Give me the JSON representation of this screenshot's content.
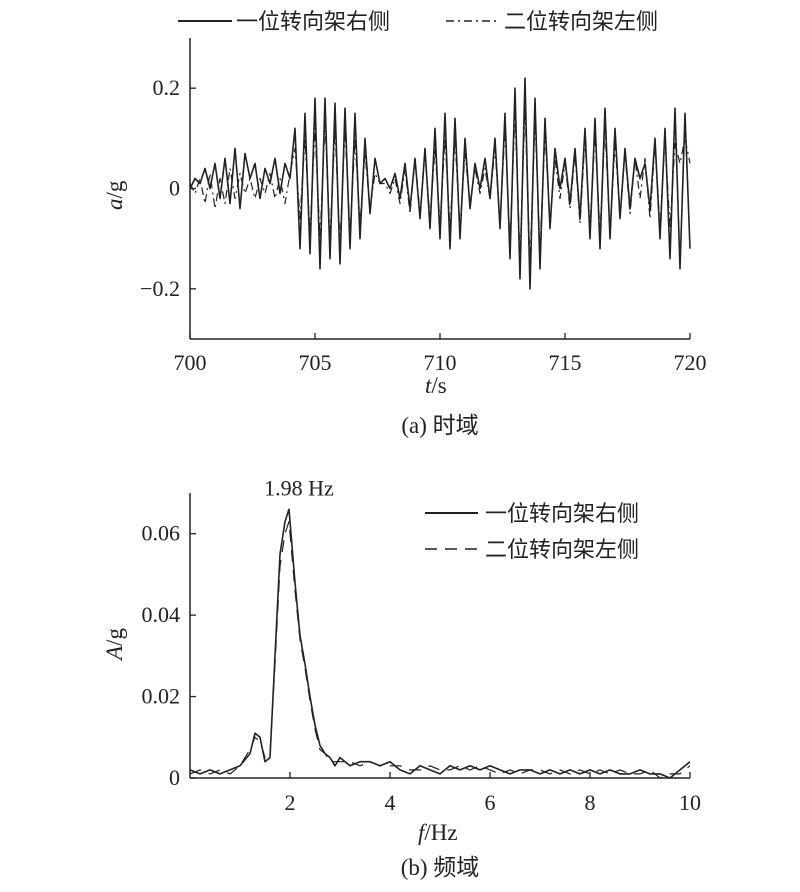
{
  "chart_data": [
    {
      "type": "line",
      "caption": "(a) 时域",
      "xlabel_italic": "t",
      "xlabel_unit": "/s",
      "ylabel_italic": "a",
      "ylabel_unit": "/g",
      "xlim": [
        700,
        720
      ],
      "ylim": [
        -0.3,
        0.3
      ],
      "xticks": [
        700,
        705,
        710,
        715,
        720
      ],
      "xtick_labels": [
        "700",
        "705",
        "710",
        "715",
        "720"
      ],
      "yticks": [
        0.2,
        0,
        -0.2
      ],
      "ytick_labels": [
        "0.2",
        "0",
        "−0.2"
      ],
      "legend_position": "top",
      "series": [
        {
          "name": "一位转向架右侧",
          "style": "solid",
          "x": [
            700.0,
            700.2,
            700.4,
            700.6,
            700.8,
            701.0,
            701.2,
            701.4,
            701.6,
            701.8,
            702.0,
            702.2,
            702.4,
            702.6,
            702.8,
            703.0,
            703.2,
            703.4,
            703.6,
            703.8,
            704.0,
            704.2,
            704.4,
            704.6,
            704.8,
            705.0,
            705.2,
            705.4,
            705.6,
            705.8,
            706.0,
            706.2,
            706.4,
            706.6,
            706.8,
            707.0,
            707.2,
            707.4,
            707.6,
            707.8,
            708.0,
            708.2,
            708.4,
            708.6,
            708.8,
            709.0,
            709.2,
            709.4,
            709.6,
            709.8,
            710.0,
            710.2,
            710.4,
            710.6,
            710.8,
            711.0,
            711.2,
            711.4,
            711.6,
            711.8,
            712.0,
            712.2,
            712.4,
            712.6,
            712.8,
            713.0,
            713.2,
            713.4,
            713.6,
            713.8,
            714.0,
            714.2,
            714.4,
            714.6,
            714.8,
            715.0,
            715.2,
            715.4,
            715.6,
            715.8,
            716.0,
            716.2,
            716.4,
            716.6,
            716.8,
            717.0,
            717.2,
            717.4,
            717.6,
            717.8,
            718.0,
            718.2,
            718.4,
            718.6,
            718.8,
            719.0,
            719.2,
            719.4,
            719.6,
            719.8,
            720.0
          ],
          "y": [
            0.0,
            0.02,
            0.01,
            0.04,
            0.0,
            0.05,
            -0.02,
            0.06,
            -0.03,
            0.08,
            -0.04,
            0.07,
            0.02,
            0.05,
            -0.02,
            0.04,
            0.01,
            0.06,
            -0.01,
            0.05,
            0.02,
            0.12,
            -0.12,
            0.15,
            -0.13,
            0.18,
            -0.16,
            0.18,
            -0.14,
            0.17,
            -0.15,
            0.16,
            -0.12,
            0.15,
            -0.1,
            0.1,
            -0.05,
            0.06,
            0.01,
            0.02,
            0.0,
            0.03,
            -0.02,
            0.05,
            -0.04,
            0.06,
            -0.06,
            0.08,
            -0.08,
            0.12,
            -0.1,
            0.15,
            -0.12,
            0.14,
            -0.1,
            0.1,
            -0.04,
            0.05,
            0.0,
            0.06,
            -0.02,
            0.1,
            -0.08,
            0.15,
            -0.14,
            0.2,
            -0.18,
            0.22,
            -0.2,
            0.18,
            -0.16,
            0.14,
            -0.08,
            0.08,
            0.0,
            0.06,
            -0.03,
            0.08,
            -0.06,
            0.12,
            -0.1,
            0.14,
            -0.12,
            0.16,
            -0.1,
            0.12,
            -0.06,
            0.08,
            -0.04,
            0.06,
            0.02,
            0.05,
            -0.04,
            0.1,
            -0.1,
            0.12,
            -0.14,
            0.16,
            -0.16,
            0.15,
            -0.12
          ]
        },
        {
          "name": "二位转向架左侧",
          "style": "dash-dot",
          "x": [
            700.0,
            700.2,
            700.4,
            700.6,
            700.8,
            701.0,
            701.2,
            701.4,
            701.6,
            701.8,
            702.0,
            702.2,
            702.4,
            702.6,
            702.8,
            703.0,
            703.2,
            703.4,
            703.6,
            703.8,
            704.0,
            704.2,
            704.4,
            704.6,
            704.8,
            705.0,
            705.2,
            705.4,
            705.6,
            705.8,
            706.0,
            706.2,
            706.4,
            706.6,
            706.8,
            707.0,
            707.2,
            707.4,
            707.6,
            707.8,
            708.0,
            708.2,
            708.4,
            708.6,
            708.8,
            709.0,
            709.2,
            709.4,
            709.6,
            709.8,
            710.0,
            710.2,
            710.4,
            710.6,
            710.8,
            711.0,
            711.2,
            711.4,
            711.6,
            711.8,
            712.0,
            712.2,
            712.4,
            712.6,
            712.8,
            713.0,
            713.2,
            713.4,
            713.6,
            713.8,
            714.0,
            714.2,
            714.4,
            714.6,
            714.8,
            715.0,
            715.2,
            715.4,
            715.6,
            715.8,
            716.0,
            716.2,
            716.4,
            716.6,
            716.8,
            717.0,
            717.2,
            717.4,
            717.6,
            717.8,
            718.0,
            718.2,
            718.4,
            718.6,
            718.8,
            719.0,
            719.2,
            719.4,
            719.6,
            719.8,
            720.0
          ],
          "y": [
            0.01,
            -0.01,
            0.02,
            -0.03,
            0.03,
            -0.04,
            0.02,
            -0.03,
            0.04,
            -0.02,
            0.03,
            -0.01,
            0.02,
            -0.02,
            0.02,
            -0.01,
            0.03,
            -0.02,
            0.02,
            -0.03,
            0.03,
            0.08,
            -0.06,
            0.1,
            -0.09,
            0.12,
            -0.1,
            0.13,
            -0.1,
            0.12,
            -0.11,
            0.12,
            -0.09,
            0.1,
            -0.07,
            0.07,
            -0.04,
            0.03,
            0.01,
            0.01,
            -0.01,
            0.02,
            -0.03,
            0.04,
            -0.05,
            0.06,
            -0.05,
            0.07,
            -0.06,
            0.08,
            -0.07,
            0.1,
            -0.08,
            0.1,
            -0.08,
            0.07,
            -0.03,
            0.04,
            -0.01,
            0.04,
            -0.02,
            0.08,
            -0.07,
            0.12,
            -0.11,
            0.15,
            -0.14,
            0.16,
            -0.15,
            0.14,
            -0.12,
            0.11,
            -0.07,
            0.06,
            -0.02,
            0.05,
            -0.04,
            0.07,
            -0.07,
            0.1,
            -0.08,
            0.11,
            -0.09,
            0.12,
            -0.09,
            0.09,
            -0.05,
            0.07,
            -0.05,
            0.06,
            -0.02,
            0.06,
            -0.06,
            0.09,
            -0.08,
            0.1,
            -0.08,
            0.09,
            0.05,
            0.1,
            0.05
          ]
        }
      ]
    },
    {
      "type": "line",
      "caption": "(b) 频域",
      "xlabel_italic": "f",
      "xlabel_unit": "/Hz",
      "ylabel_italic": "A",
      "ylabel_unit": "/g",
      "xlim": [
        0,
        10
      ],
      "ylim": [
        0,
        0.07
      ],
      "xticks": [
        2,
        4,
        6,
        8,
        10
      ],
      "xtick_labels": [
        "2",
        "4",
        "6",
        "8",
        "10"
      ],
      "yticks": [
        0,
        0.02,
        0.04,
        0.06
      ],
      "ytick_labels": [
        "0",
        "0.02",
        "0.04",
        "0.06"
      ],
      "annotation": "1.98 Hz",
      "annotation_x": 1.98,
      "annotation_y": 0.0665,
      "legend_position": "top-right",
      "series": [
        {
          "name": "一位转向架右侧",
          "style": "solid",
          "x": [
            0.0,
            0.2,
            0.4,
            0.6,
            0.8,
            1.0,
            1.2,
            1.3,
            1.4,
            1.5,
            1.6,
            1.7,
            1.8,
            1.9,
            1.98,
            2.1,
            2.2,
            2.3,
            2.4,
            2.5,
            2.6,
            2.7,
            2.8,
            2.9,
            3.0,
            3.2,
            3.4,
            3.6,
            3.8,
            4.0,
            4.2,
            4.4,
            4.6,
            4.8,
            5.0,
            5.2,
            5.4,
            5.6,
            5.8,
            6.0,
            6.2,
            6.4,
            6.6,
            6.8,
            7.0,
            7.2,
            7.4,
            7.6,
            7.8,
            8.0,
            8.2,
            8.4,
            8.6,
            8.8,
            9.0,
            9.2,
            9.4,
            9.6,
            9.8,
            10.0
          ],
          "y": [
            0.002,
            0.001,
            0.002,
            0.001,
            0.002,
            0.003,
            0.006,
            0.011,
            0.01,
            0.004,
            0.005,
            0.03,
            0.055,
            0.063,
            0.066,
            0.048,
            0.035,
            0.028,
            0.02,
            0.013,
            0.008,
            0.006,
            0.005,
            0.003,
            0.005,
            0.003,
            0.004,
            0.004,
            0.003,
            0.004,
            0.002,
            0.001,
            0.003,
            0.002,
            0.001,
            0.003,
            0.002,
            0.003,
            0.002,
            0.003,
            0.002,
            0.001,
            0.002,
            0.002,
            0.001,
            0.002,
            0.001,
            0.002,
            0.001,
            0.002,
            0.001,
            0.002,
            0.001,
            0.001,
            0.002,
            0.001,
            0.001,
            0.0,
            0.002,
            0.004
          ]
        },
        {
          "name": "二位转向架左侧",
          "style": "dashed",
          "x": [
            0.0,
            0.2,
            0.4,
            0.6,
            0.8,
            1.0,
            1.2,
            1.3,
            1.4,
            1.5,
            1.6,
            1.7,
            1.8,
            1.9,
            1.98,
            2.1,
            2.2,
            2.3,
            2.4,
            2.5,
            2.6,
            2.7,
            2.8,
            2.9,
            3.0,
            3.2,
            3.4,
            3.6,
            3.8,
            4.0,
            4.2,
            4.4,
            4.6,
            4.8,
            5.0,
            5.2,
            5.4,
            5.6,
            5.8,
            6.0,
            6.2,
            6.4,
            6.6,
            6.8,
            7.0,
            7.2,
            7.4,
            7.6,
            7.8,
            8.0,
            8.2,
            8.4,
            8.6,
            8.8,
            9.0,
            9.2,
            9.4,
            9.6,
            9.8,
            10.0
          ],
          "y": [
            0.001,
            0.002,
            0.001,
            0.002,
            0.001,
            0.003,
            0.007,
            0.01,
            0.009,
            0.005,
            0.006,
            0.028,
            0.052,
            0.06,
            0.063,
            0.046,
            0.034,
            0.027,
            0.019,
            0.012,
            0.007,
            0.006,
            0.004,
            0.004,
            0.004,
            0.004,
            0.003,
            0.004,
            0.003,
            0.003,
            0.003,
            0.002,
            0.002,
            0.003,
            0.002,
            0.002,
            0.003,
            0.002,
            0.003,
            0.002,
            0.001,
            0.002,
            0.001,
            0.002,
            0.002,
            0.001,
            0.002,
            0.001,
            0.002,
            0.001,
            0.002,
            0.001,
            0.002,
            0.001,
            0.001,
            0.002,
            0.0,
            0.001,
            0.001,
            0.003
          ]
        }
      ]
    }
  ]
}
